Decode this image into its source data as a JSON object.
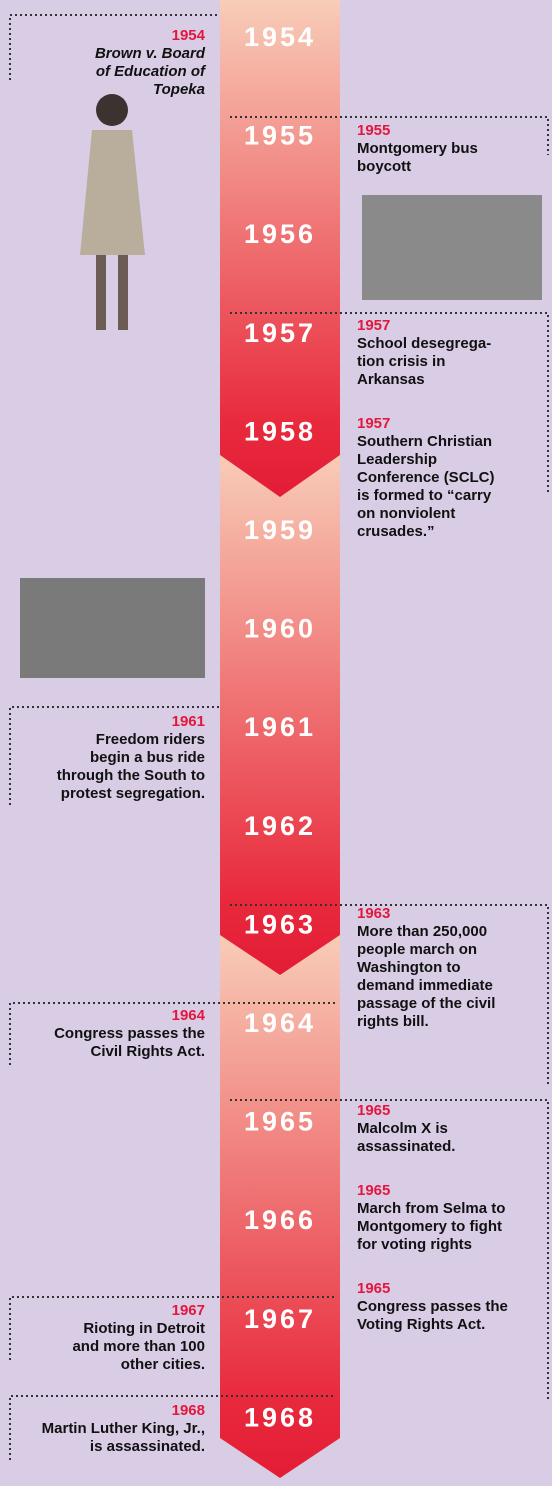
{
  "years": [
    "1954",
    "1955",
    "1956",
    "1957",
    "1958",
    "1959",
    "1960",
    "1961",
    "1962",
    "1963",
    "1964",
    "1965",
    "1966",
    "1967",
    "1968"
  ],
  "events": [
    {
      "year": "1954",
      "lines": [
        "Brown v. Board",
        "of Education of",
        "Topeka"
      ]
    },
    {
      "year": "1955",
      "lines": [
        "Montgomery bus",
        "boycott"
      ]
    },
    {
      "year": "1957",
      "lines": [
        "School desegrega-",
        "tion crisis in",
        "Arkansas"
      ]
    },
    {
      "year": "1957",
      "lines": [
        "Southern Christian",
        "Leadership",
        "Conference (SCLC)",
        "is formed to “carry",
        "on nonviolent",
        "crusades.”"
      ]
    },
    {
      "year": "1961",
      "lines": [
        "Freedom riders",
        "begin a bus ride",
        "through the South to",
        "protest segregation."
      ]
    },
    {
      "year": "1963",
      "lines": [
        "More than 250,000",
        "people march on",
        "Washington to",
        "demand immediate",
        "passage of the civil",
        "rights bill."
      ]
    },
    {
      "year": "1964",
      "lines": [
        "Congress passes the",
        "Civil Rights Act."
      ]
    },
    {
      "year": "1965",
      "lines": [
        "Malcolm X is",
        "assassinated."
      ]
    },
    {
      "year": "1965",
      "lines": [
        "March from Selma to",
        "Montgomery to fight",
        "for voting rights"
      ]
    },
    {
      "year": "1967",
      "lines": [
        "Rioting in Detroit",
        "and more than 100",
        "other cities."
      ]
    },
    {
      "year": "1965",
      "lines": [
        "Congress passes the",
        "Voting Rights Act."
      ]
    },
    {
      "year": "1968",
      "lines": [
        "Martin Luther King, Jr.,",
        "is assassinated."
      ]
    }
  ]
}
